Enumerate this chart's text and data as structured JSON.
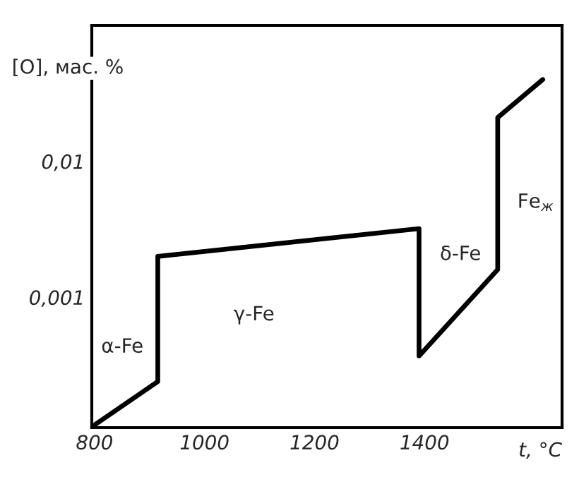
{
  "chart_data": {
    "type": "line",
    "ylabel": "[O], мас. %",
    "xlabel": "t, °C",
    "x": [
      800,
      915,
      915,
      1390,
      1390,
      1533,
      1533,
      1615
    ],
    "series": [
      {
        "color": "#000000",
        "values": [
          0.000115,
          0.00024,
          0.002,
          0.0032,
          0.00037,
          0.0016,
          0.021,
          0.04
        ]
      }
    ],
    "log": "y",
    "xlim": [
      795,
      1650
    ],
    "ylim": [
      0.00011,
      0.1
    ],
    "xticks": [
      800,
      1000,
      1200,
      1400
    ],
    "yticks": [
      {
        "value": 0.001,
        "label": "0,001"
      },
      {
        "value": 0.01,
        "label": "0,01"
      }
    ],
    "annotations": [
      "α-Fe",
      "γ-Fe",
      "δ-Fe",
      "Fe$_{ж}$"
    ],
    "grid": false,
    "marker": "none",
    "line_style": "solid",
    "legend": false
  }
}
